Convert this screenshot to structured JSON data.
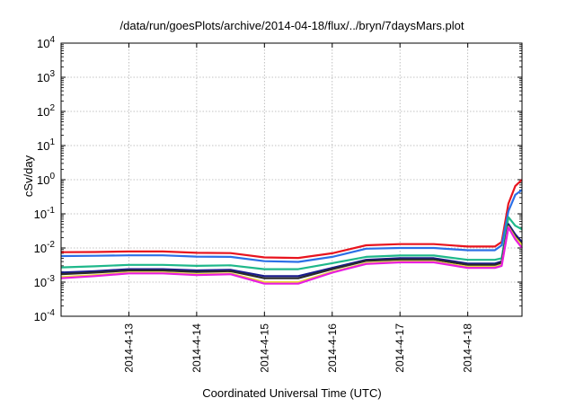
{
  "chart_data": {
    "type": "line",
    "title": "/data/run/goesPlots/archive/2014-04-18/flux/../bryn/7daysMars.plot",
    "xlabel": "Coordinated Universal Time (UTC)",
    "ylabel": "cSv/day",
    "yscale": "log",
    "ylim": [
      0.0001,
      10000
    ],
    "xlim_days": [
      0,
      6.8
    ],
    "grid": true,
    "legend": "none",
    "x_ticks": [
      {
        "day": 1,
        "label": "2014-4-13"
      },
      {
        "day": 2,
        "label": "2014-4-14"
      },
      {
        "day": 3,
        "label": "2014-4-15"
      },
      {
        "day": 4,
        "label": "2014-4-16"
      },
      {
        "day": 5,
        "label": "2014-4-17"
      },
      {
        "day": 6,
        "label": "2014-4-18"
      }
    ],
    "y_ticks": [
      {
        "value": 0.0001,
        "exp": "-4"
      },
      {
        "value": 0.001,
        "exp": "-3"
      },
      {
        "value": 0.01,
        "exp": "-2"
      },
      {
        "value": 0.1,
        "exp": "-1"
      },
      {
        "value": 1,
        "exp": "0"
      },
      {
        "value": 10,
        "exp": "1"
      },
      {
        "value": 100,
        "exp": "2"
      },
      {
        "value": 1000,
        "exp": "3"
      },
      {
        "value": 10000,
        "exp": "4"
      }
    ],
    "x": [
      0,
      0.5,
      1,
      1.5,
      2,
      2.5,
      3,
      3.5,
      4,
      4.5,
      5,
      5.5,
      6,
      6.4,
      6.5,
      6.6,
      6.7,
      6.8
    ],
    "series": [
      {
        "color": "#e8141e",
        "values": [
          0.0075,
          0.0076,
          0.0079,
          0.0079,
          0.0072,
          0.0071,
          0.0053,
          0.0051,
          0.007,
          0.012,
          0.013,
          0.013,
          0.011,
          0.011,
          0.015,
          0.2,
          0.65,
          1.0
        ]
      },
      {
        "color": "#2b6fe6",
        "values": [
          0.0058,
          0.0059,
          0.0061,
          0.0061,
          0.0056,
          0.0055,
          0.0041,
          0.0039,
          0.0055,
          0.0095,
          0.01,
          0.01,
          0.0086,
          0.0086,
          0.012,
          0.12,
          0.36,
          0.5
        ]
      },
      {
        "color": "#1fb88a",
        "values": [
          0.0027,
          0.0029,
          0.0032,
          0.0032,
          0.003,
          0.0031,
          0.0024,
          0.0024,
          0.0036,
          0.0055,
          0.006,
          0.006,
          0.0045,
          0.0045,
          0.005,
          0.08,
          0.045,
          0.035
        ]
      },
      {
        "color": "#1a1a8c",
        "values": [
          0.0019,
          0.0021,
          0.0024,
          0.0024,
          0.0022,
          0.0023,
          0.0015,
          0.0015,
          0.0026,
          0.0045,
          0.005,
          0.005,
          0.0035,
          0.0035,
          0.004,
          0.05,
          0.025,
          0.015
        ]
      },
      {
        "color": "#2a2a2a",
        "values": [
          0.0017,
          0.0019,
          0.0022,
          0.0022,
          0.002,
          0.0021,
          0.0013,
          0.0013,
          0.0024,
          0.0042,
          0.0046,
          0.0046,
          0.0032,
          0.0032,
          0.0037,
          0.045,
          0.022,
          0.013
        ]
      },
      {
        "color": "#e8d83a",
        "values": [
          0.0014,
          0.0016,
          0.0019,
          0.0019,
          0.0017,
          0.0018,
          0.001,
          0.001,
          0.002,
          0.0036,
          0.004,
          0.004,
          0.0028,
          0.0028,
          0.0032,
          0.042,
          0.02,
          0.012
        ]
      },
      {
        "color": "#e81ee0",
        "values": [
          0.0013,
          0.0015,
          0.0018,
          0.0018,
          0.0016,
          0.0017,
          0.0009,
          0.0009,
          0.0019,
          0.0034,
          0.0038,
          0.0038,
          0.0026,
          0.0026,
          0.003,
          0.04,
          0.018,
          0.01
        ]
      }
    ]
  }
}
